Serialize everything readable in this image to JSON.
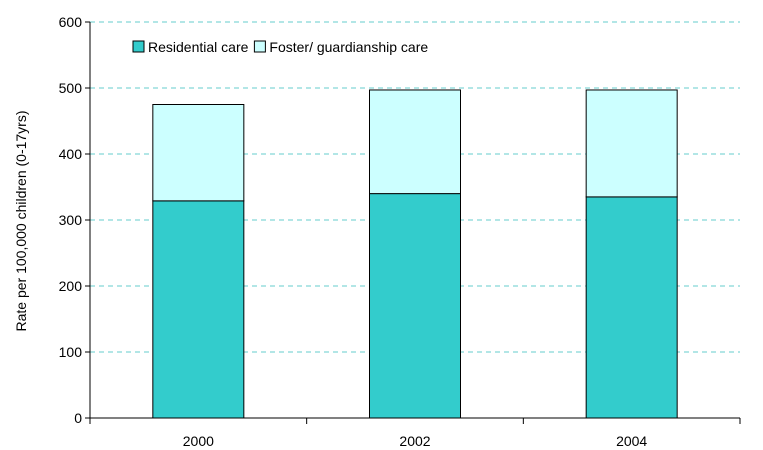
{
  "chart_data": {
    "type": "bar",
    "stacked": true,
    "categories": [
      "2000",
      "2002",
      "2004"
    ],
    "series": [
      {
        "name": "Residential care",
        "values": [
          329,
          340,
          335
        ],
        "color": "#33CCCC"
      },
      {
        "name": "Foster/ guardianship care",
        "values": [
          146,
          157,
          162
        ],
        "color": "#CCFFFF"
      }
    ],
    "ylabel": "Rate per 100,000 children (0-17yrs)",
    "xlabel": "",
    "ylim": [
      0,
      600
    ],
    "yticks": [
      0,
      100,
      200,
      300,
      400,
      500,
      600
    ],
    "grid": true,
    "gridline_color": "#66CCCC",
    "legend_position": "top-left"
  }
}
